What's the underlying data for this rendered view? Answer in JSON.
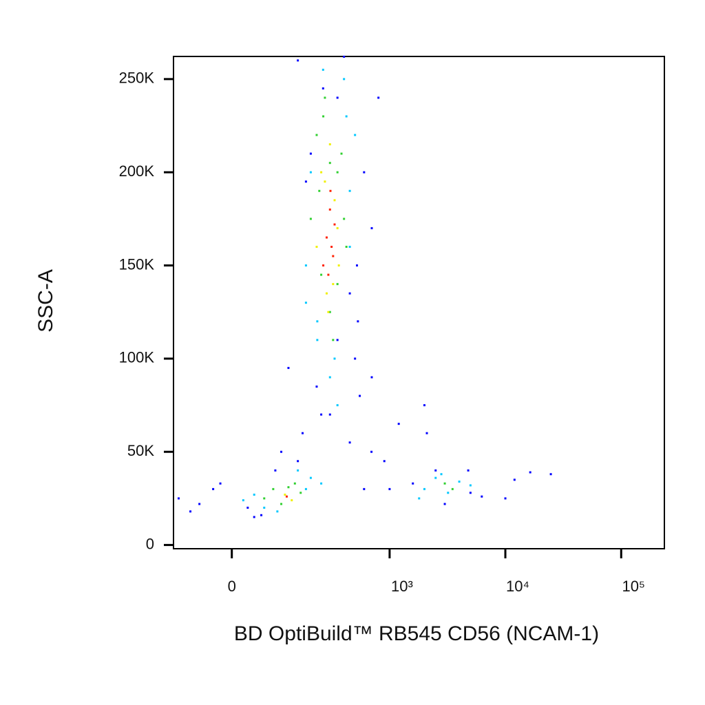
{
  "chart_data": {
    "type": "scatter",
    "x_label": "BD OptiBuild™ RB545 CD56 (NCAM-1)",
    "y_label": "SSC-A",
    "xscale": "biexponential",
    "xlim": [
      -125,
      236000
    ],
    "ylim": [
      -2000,
      262144
    ],
    "xticks": [
      0,
      {
        "value": 1000,
        "label": "10³"
      },
      {
        "value": 10000,
        "label": "10⁴"
      },
      {
        "value": 100000,
        "label": "10⁵"
      }
    ],
    "yticks": [
      0,
      {
        "value": 50000,
        "label": "50K"
      },
      {
        "value": 100000,
        "label": "100K"
      },
      {
        "value": 150000,
        "label": "150K"
      },
      {
        "value": 200000,
        "label": "200K"
      },
      {
        "value": 250000,
        "label": "250K"
      }
    ],
    "series": [
      {
        "color": "#0000ff",
        "x": [
          -110,
          -60,
          -33,
          28,
          54,
          85,
          167,
          227,
          530,
          696,
          1000,
          1590,
          2100,
          4780,
          6260,
          10000,
          16400,
          24700,
          -80,
          500,
          600,
          800,
          400,
          150,
          120,
          300,
          450,
          700,
          260,
          350,
          200,
          600,
          1200,
          3000,
          5000,
          2000,
          700,
          150,
          100,
          -20,
          40,
          550,
          900,
          450,
          350,
          180,
          250,
          520,
          2500,
          12000
        ],
        "y": [
          25000,
          22000,
          30000,
          20000,
          16000,
          40000,
          60000,
          85000,
          120000,
          50000,
          30000,
          33000,
          60000,
          40000,
          26000,
          25000,
          39000,
          38000,
          18000,
          100000,
          200000,
          240000,
          262000,
          260000,
          95000,
          70000,
          55000,
          170000,
          245000,
          110000,
          210000,
          30000,
          65000,
          22000,
          28000,
          75000,
          90000,
          45000,
          50000,
          33000,
          15000,
          80000,
          45000,
          135000,
          240000,
          195000,
          70000,
          150000,
          40000,
          35000
        ]
      },
      {
        "color": "#00c8ff",
        "x": [
          180,
          200,
          450,
          420,
          230,
          330,
          500,
          400,
          260,
          180,
          450,
          300,
          350,
          230,
          40,
          60,
          180,
          200,
          20,
          150,
          250,
          90,
          2000,
          2500,
          4000,
          3200,
          5000,
          1800,
          2800
        ],
        "y": [
          150000,
          200000,
          190000,
          230000,
          120000,
          100000,
          220000,
          250000,
          255000,
          130000,
          160000,
          90000,
          75000,
          110000,
          27000,
          20000,
          30000,
          36000,
          24000,
          40000,
          33000,
          18000,
          30000,
          36000,
          34000,
          28000,
          32000,
          25000,
          38000
        ]
      },
      {
        "color": "#30d030",
        "x": [
          227,
          261,
          350,
          400,
          300,
          250,
          380,
          320,
          200,
          270,
          350,
          240,
          300,
          420,
          80,
          100,
          140,
          160,
          60,
          120,
          3000,
          3500
        ],
        "y": [
          220000,
          230000,
          200000,
          175000,
          125000,
          145000,
          210000,
          110000,
          175000,
          240000,
          140000,
          190000,
          205000,
          160000,
          30000,
          22000,
          33000,
          28000,
          25000,
          31000,
          33000,
          30000
        ]
      },
      {
        "color": "#f0f000",
        "x": [
          250,
          280,
          330,
          350,
          300,
          227,
          320,
          270,
          360,
          290,
          110,
          130
        ],
        "y": [
          200000,
          135000,
          185000,
          170000,
          215000,
          160000,
          140000,
          195000,
          150000,
          125000,
          27000,
          24000
        ]
      },
      {
        "color": "#ff2000",
        "x": [
          280,
          300,
          320,
          261,
          303,
          290,
          330,
          310,
          115
        ],
        "y": [
          165000,
          180000,
          155000,
          150000,
          190000,
          145000,
          172000,
          160000,
          26000
        ]
      }
    ]
  }
}
